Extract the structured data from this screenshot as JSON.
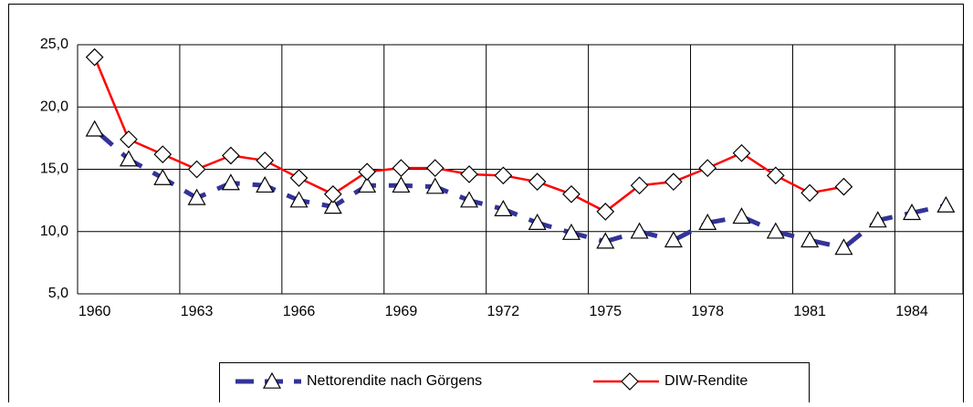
{
  "chart_data": {
    "type": "line",
    "x": [
      1960,
      1961,
      1962,
      1963,
      1964,
      1965,
      1966,
      1967,
      1968,
      1969,
      1970,
      1971,
      1972,
      1973,
      1974,
      1975,
      1976,
      1977,
      1978,
      1979,
      1980,
      1981,
      1982,
      1983,
      1984,
      1985
    ],
    "xlim": [
      1959.5,
      1985.5
    ],
    "xticks": [
      1960,
      1963,
      1966,
      1969,
      1972,
      1975,
      1978,
      1981,
      1984
    ],
    "ylim": [
      5,
      25
    ],
    "yticks": [
      {
        "value": 5,
        "label": "5,0"
      },
      {
        "value": 10,
        "label": "10,0"
      },
      {
        "value": 15,
        "label": "15,0"
      },
      {
        "value": 20,
        "label": "20,0"
      },
      {
        "value": 25,
        "label": "25,0"
      }
    ],
    "grid": true,
    "legend": "bottom",
    "series": [
      {
        "name": "Nettorendite nach Görgens",
        "color": "#333399",
        "marker": "triangle",
        "dashed": true,
        "values": [
          18.2,
          15.8,
          14.3,
          12.7,
          13.9,
          13.7,
          12.5,
          12.0,
          13.7,
          13.7,
          13.6,
          12.5,
          11.8,
          10.7,
          9.9,
          9.2,
          10.0,
          9.3,
          10.7,
          11.2,
          10.0,
          9.3,
          8.7,
          10.9,
          11.5,
          12.1
        ]
      },
      {
        "name": "DIW-Rendite",
        "color": "#ff0000",
        "marker": "diamond",
        "dashed": false,
        "values": [
          24.0,
          17.4,
          16.2,
          15.0,
          16.1,
          15.7,
          14.3,
          13.0,
          14.8,
          15.1,
          15.1,
          14.6,
          14.5,
          14.0,
          13.0,
          11.6,
          13.7,
          14.0,
          15.1,
          16.3,
          14.5,
          13.1,
          13.6,
          null,
          null,
          null
        ]
      }
    ]
  }
}
